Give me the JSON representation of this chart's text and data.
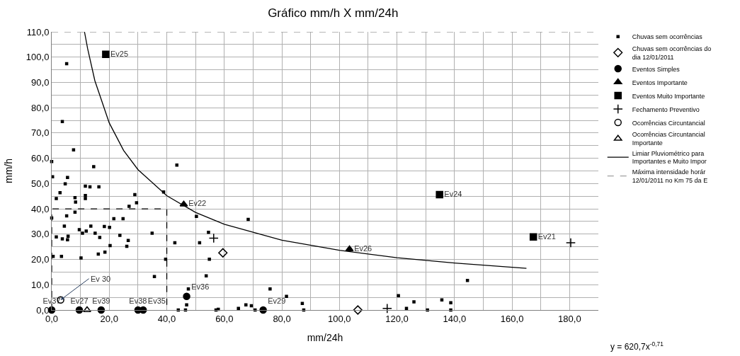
{
  "chart_data": {
    "type": "scatter",
    "title": "Gráfico mm/h X mm/24h",
    "xlabel": "mm/24h",
    "ylabel": "mm/h",
    "xlim": [
      0,
      190
    ],
    "ylim": [
      0,
      110
    ],
    "xticks": [
      {
        "value": 0,
        "label": "0,0"
      },
      {
        "value": 20,
        "label": "20,0"
      },
      {
        "value": 40,
        "label": "40,0"
      },
      {
        "value": 60,
        "label": "60,0"
      },
      {
        "value": 80,
        "label": "80,0"
      },
      {
        "value": 100,
        "label": "100,0"
      },
      {
        "value": 120,
        "label": "120,0"
      },
      {
        "value": 140,
        "label": "140,0"
      },
      {
        "value": 160,
        "label": "160,0"
      },
      {
        "value": 180,
        "label": "180,0"
      }
    ],
    "yticks": [
      {
        "value": 0,
        "label": "0,0"
      },
      {
        "value": 10,
        "label": "10,0"
      },
      {
        "value": 20,
        "label": "20,0"
      },
      {
        "value": 30,
        "label": "30,0"
      },
      {
        "value": 40,
        "label": "40,0"
      },
      {
        "value": 50,
        "label": "50,0"
      },
      {
        "value": 60,
        "label": "60,0"
      },
      {
        "value": 70,
        "label": "70,0"
      },
      {
        "value": 80,
        "label": "80,0"
      },
      {
        "value": 90,
        "label": "90,0"
      },
      {
        "value": 100,
        "label": "100,0"
      },
      {
        "value": 110,
        "label": "110,0"
      }
    ],
    "grid": true,
    "legend": "right",
    "series": [
      {
        "name": "Chuvas sem ocorrências",
        "color": "#000000",
        "marker": "square",
        "x": [
          5.2,
          3.7,
          7.6,
          0,
          14.6,
          43.5,
          0.3,
          5.5,
          4.7,
          11.7,
          13.3,
          16.4,
          2.9,
          38.9,
          1.6,
          8.1,
          11.7,
          11.7,
          8.3,
          28.9,
          29.5,
          26.9,
          0,
          5.2,
          8.1,
          21.6,
          24.8,
          4.4,
          9.6,
          10.7,
          12,
          13.6,
          15.1,
          16.7,
          18.3,
          20.1,
          23.7,
          26.6,
          20.3,
          26.1,
          1.6,
          3.7,
          5.7,
          5.5,
          34.9,
          42.8,
          51.4,
          54.5,
          54.8,
          53.7,
          18.5,
          16.2,
          10.2,
          0.5,
          3.4,
          35.7,
          39.6,
          50.3,
          68.3,
          75.9,
          47.5,
          46.9,
          44,
          46.5,
          57.9,
          64.9,
          67.5,
          69.4,
          81.6,
          70.7,
          87.1,
          87.6,
          120.5,
          123.3,
          125.9,
          130.6,
          135.6,
          138.7,
          138.7,
          144.5,
          57.1
        ],
        "values": [
          97.4,
          74.5,
          63.3,
          58.7,
          56.7,
          57.3,
          52.7,
          52.4,
          49.9,
          49,
          48.7,
          48.7,
          46.4,
          46.7,
          44.1,
          44.4,
          45.3,
          44.1,
          42.7,
          45.6,
          42.4,
          41,
          36.4,
          37.2,
          38.7,
          36.1,
          36.1,
          33.2,
          31.8,
          30.4,
          31.2,
          33.2,
          30.4,
          28.7,
          33,
          32.7,
          29.5,
          27.5,
          25.5,
          25.2,
          28.9,
          28.1,
          29.2,
          27.8,
          30.4,
          26.6,
          26.6,
          30.7,
          20.1,
          13.5,
          22.9,
          22.1,
          20.6,
          21.2,
          21.2,
          13.2,
          20.1,
          37,
          35.8,
          8.3,
          8.3,
          2,
          0,
          0,
          0.3,
          0.6,
          2,
          1.7,
          5.4,
          0,
          2.6,
          0,
          5.7,
          0.6,
          3.2,
          0,
          4,
          2.9,
          0,
          11.7,
          0
        ]
      },
      {
        "name": "Chuvas sem ocorrências do dia 12/01/2011",
        "color": "#000000",
        "marker": "diamond-open",
        "x": [
          59.5,
          106.4
        ],
        "values": [
          22.6,
          0
        ]
      },
      {
        "name": "Eventos Simples",
        "color": "#000000",
        "marker": "circle",
        "x": [
          0,
          9.6,
          17.2,
          30,
          31.8,
          46.9,
          73.5
        ],
        "values": [
          0,
          0,
          0,
          0,
          0,
          5.4,
          0
        ],
        "value_labels": [
          "Ev37",
          "Ev27",
          "Ev39",
          "Ev38",
          "Ev35",
          "Ev36",
          "Ev29"
        ]
      },
      {
        "name": "Eventos Importante",
        "color": "#000000",
        "marker": "triangle",
        "x": [
          45.9,
          103.5
        ],
        "values": [
          41.8,
          24.1
        ],
        "value_labels": [
          "Ev22",
          "Ev26"
        ]
      },
      {
        "name": "Eventos Muito Importante",
        "color": "#000000",
        "marker": "square",
        "x": [
          18.8,
          134.8,
          167.4
        ],
        "values": [
          101.1,
          45.6,
          28.9
        ],
        "value_labels": [
          "Ev25",
          "Ev24",
          "Ev21"
        ]
      },
      {
        "name": "Fechamento Preventivo",
        "color": "#000000",
        "marker": "cross",
        "x": [
          56.3,
          116.6,
          180.4
        ],
        "values": [
          28.4,
          0.6,
          26.6
        ]
      },
      {
        "name": "Ocorrências Circuntancial",
        "color": "#000000",
        "marker": "circle-open",
        "x": [
          3.1
        ],
        "values": [
          4.0
        ]
      },
      {
        "name": "Ocorrências Circuntancial Importante",
        "color": "#000000",
        "marker": "triangle-open",
        "x": [
          12.3
        ],
        "values": [
          0
        ]
      },
      {
        "name": "Limiar Pluviométrico para Importantes e Muito Impor",
        "type": "line",
        "color": "#000000",
        "line_style": "solid",
        "marker": "none",
        "x": [
          11.4,
          12.5,
          15,
          20,
          25,
          30,
          40,
          50,
          60,
          80,
          100,
          120,
          140,
          165
        ],
        "values": [
          110,
          103.3,
          90.7,
          74,
          63.1,
          55.5,
          45.2,
          38.6,
          33.9,
          27.6,
          23.6,
          20.7,
          18.6,
          16.5
        ]
      },
      {
        "name": "Máxima intensidade horár 12/01/2011 no Km 75 da E",
        "type": "line",
        "color": "#a0a0a0",
        "line_style": "dashed",
        "marker": "none",
        "x": [
          0,
          190
        ],
        "values": [
          110,
          110
        ]
      },
      {
        "type": "line",
        "color": "#000000",
        "line_style": "dashed",
        "marker": "none",
        "x": [
          0,
          0,
          40,
          40
        ],
        "values": [
          0,
          40,
          40,
          0
        ]
      }
    ],
    "annotations": [
      {
        "text": "Ev 30",
        "x": 3.1,
        "y": 4.0
      },
      "y = 620,7x$^{-0,71}$"
    ]
  }
}
